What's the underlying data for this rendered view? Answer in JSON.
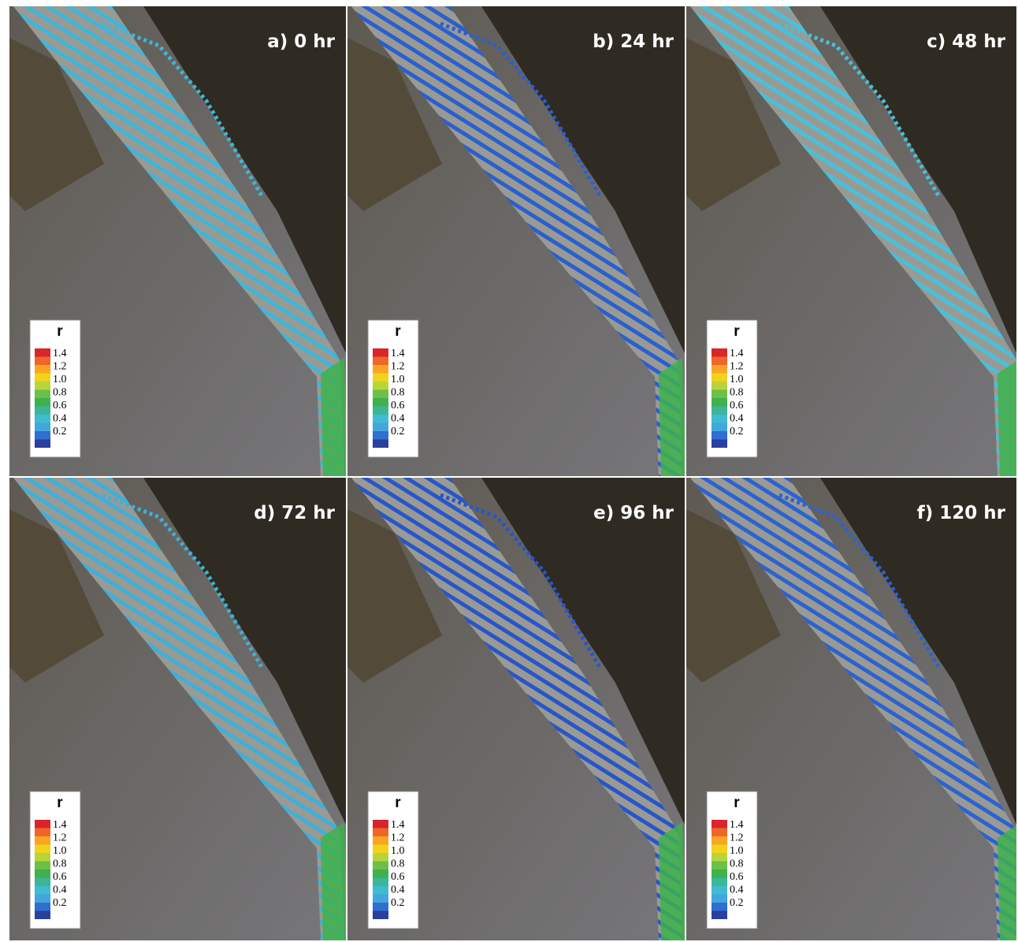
{
  "panels": [
    {
      "label": "a) 0 hr",
      "legend": {
        "title": "r",
        "ticks": [
          "1.4",
          "1.2",
          "1.0",
          "0.8",
          "0.6",
          "0.4",
          "0.2"
        ]
      }
    },
    {
      "label": "b) 24 hr",
      "legend": {
        "title": "r",
        "ticks": [
          "1.4",
          "1.2",
          "1.0",
          "0.8",
          "0.6",
          "0.4",
          "0.2"
        ]
      }
    },
    {
      "label": "c) 48 hr",
      "legend": {
        "title": "r",
        "ticks": [
          "1.4",
          "1.2",
          "1.0",
          "0.8",
          "0.6",
          "0.4",
          "0.2"
        ]
      }
    },
    {
      "label": "d) 72 hr",
      "legend": {
        "title": "r",
        "ticks": [
          "1.4",
          "1.2",
          "1.0",
          "0.8",
          "0.6",
          "0.4",
          "0.2"
        ]
      }
    },
    {
      "label": "e) 96 hr",
      "legend": {
        "title": "r",
        "ticks": [
          "1.4",
          "1.2",
          "1.0",
          "0.8",
          "0.6",
          "0.4",
          "0.2"
        ]
      }
    },
    {
      "label": "f) 120 hr",
      "legend": {
        "title": "r",
        "ticks": [
          "1.4",
          "1.2",
          "1.0",
          "0.8",
          "0.6",
          "0.4",
          "0.2"
        ]
      }
    }
  ]
}
